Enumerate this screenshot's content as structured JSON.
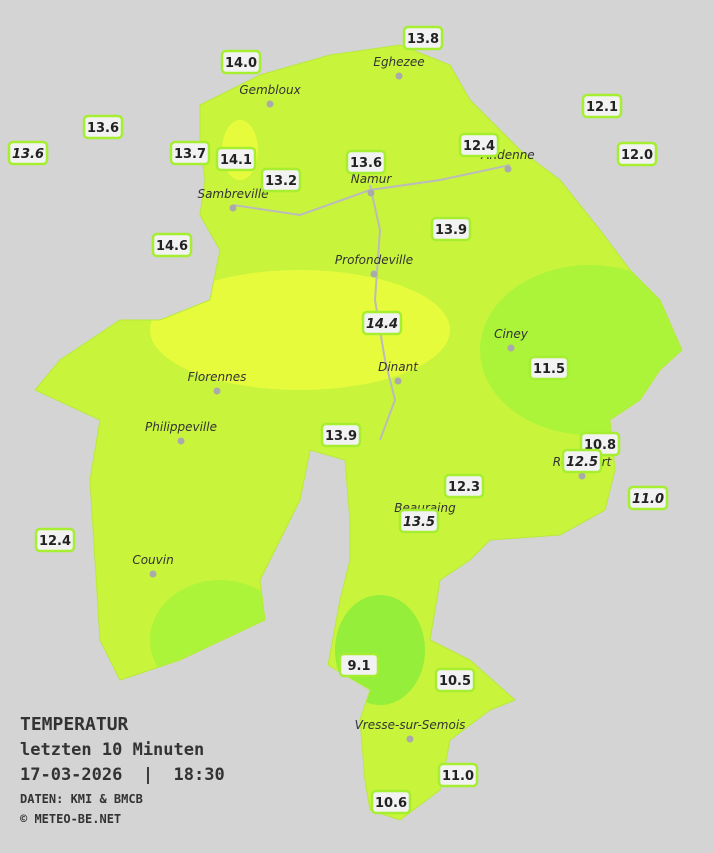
{
  "legend": {
    "title": "TEMPERATUR",
    "period": "letzten 10 Minuten",
    "timestamp": "17-03-2026  |  18:30",
    "source": "DATEN: KMI & BMCB",
    "copyright": "© METEO-BE.NET"
  },
  "cities": [
    "Eghezee",
    "Gembloux",
    "Andenne",
    "Namur",
    "Sambreville",
    "Profondeville",
    "Ciney",
    "Dinant",
    "Florennes",
    "Philippeville",
    "Rochefort",
    "Beauraing",
    "Couvin",
    "Vresse-sur-Semois"
  ],
  "stations": [
    "13.8",
    "14.0",
    "13.6",
    "13.6",
    "13.7",
    "14.1",
    "13.2",
    "13.6",
    "12.4",
    "12.1",
    "12.0",
    "14.6",
    "13.9",
    "14.4",
    "11.5",
    "13.9",
    "10.8",
    "12.5",
    "11.0",
    "12.3",
    "13.5",
    "12.4",
    "9.1",
    "10.5",
    "11.0",
    "10.6"
  ]
}
